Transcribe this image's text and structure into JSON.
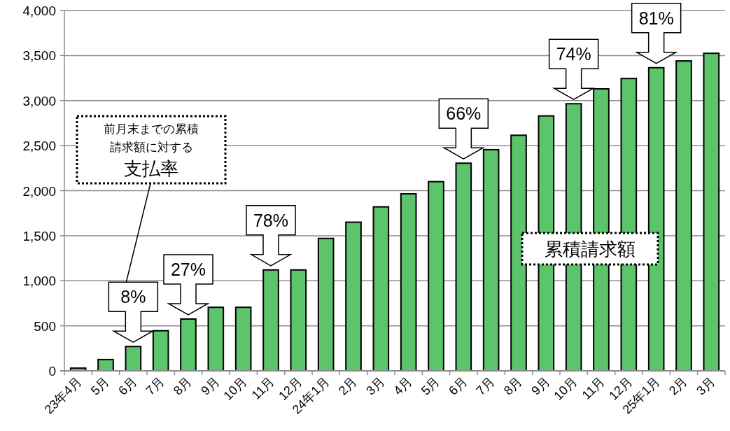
{
  "chart_data": {
    "type": "bar",
    "categories": [
      "23年4月",
      "5月",
      "6月",
      "7月",
      "8月",
      "9月",
      "10月",
      "11月",
      "12月",
      "24年1月",
      "2月",
      "3月",
      "4月",
      "5月",
      "6月",
      "7月",
      "8月",
      "9月",
      "10月",
      "11月",
      "12月",
      "25年1月",
      "2月",
      "3月"
    ],
    "values": [
      30,
      125,
      270,
      445,
      575,
      705,
      705,
      1120,
      1120,
      1470,
      1650,
      1820,
      1965,
      2100,
      2305,
      2455,
      2615,
      2830,
      2965,
      3130,
      3245,
      3365,
      3440,
      3525
    ],
    "color": "#5cc46a",
    "ylim": [
      0,
      4000
    ],
    "yticks": [
      0,
      500,
      {
        "value": 1000,
        "label": "1,000"
      },
      {
        "value": 1500,
        "label": "1,500"
      },
      {
        "value": 2000,
        "label": "2,000"
      },
      {
        "value": 2500,
        "label": "2,500"
      },
      {
        "value": 3000,
        "label": "3,000"
      },
      {
        "value": 3500,
        "label": "3,500"
      },
      {
        "value": 4000,
        "label": "4,000"
      }
    ],
    "grid": "y",
    "annotations": [
      "前月末までの累積請求額に対する支払率",
      "累積請求額",
      {
        "text": "8%",
        "x": "6月",
        "y": 270
      },
      {
        "text": "27%",
        "x": "8月",
        "y": 575
      },
      {
        "text": "78%",
        "x": "11月",
        "y": 1120
      },
      "66%",
      "74%",
      {
        "text": "81%",
        "x": "25年1月",
        "y": 3365
      }
    ]
  }
}
